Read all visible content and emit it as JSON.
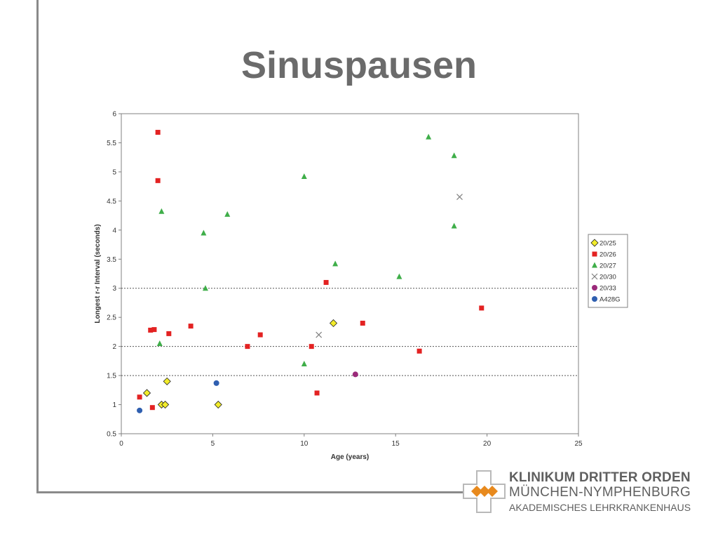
{
  "slide": {
    "title": "Sinuspausen"
  },
  "logo": {
    "line1": "KLINIKUM DRITTER ORDEN",
    "line2": "MÜNCHEN-NYMPHENBURG",
    "line3": "AKADEMISCHES LEHRKRANKENHAUS",
    "cross_color": "#b9b9b9",
    "diamond_color": "#e88a1e"
  },
  "chart_data": {
    "type": "scatter",
    "title": "",
    "xlabel": "Age (years)",
    "ylabel": "Longest r-r Interval (seconds)",
    "xlim": [
      0,
      25
    ],
    "ylim": [
      0.5,
      6
    ],
    "xticks": [
      0,
      5,
      10,
      15,
      20,
      25
    ],
    "yticks": [
      0.5,
      1,
      1.5,
      2,
      2.5,
      3,
      3.5,
      4,
      4.5,
      5,
      5.5,
      6
    ],
    "reference_lines_y": [
      1.5,
      2,
      3
    ],
    "grid": false,
    "legend_position": "right",
    "series": [
      {
        "name": "20/25",
        "marker": "diamond",
        "color": "#f2ec2b",
        "points": [
          [
            1.4,
            1.2
          ],
          [
            2.2,
            1.0
          ],
          [
            2.4,
            1.0
          ],
          [
            2.5,
            1.4
          ],
          [
            5.3,
            1.0
          ],
          [
            11.6,
            2.4
          ]
        ]
      },
      {
        "name": "20/26",
        "marker": "square",
        "color": "#e32222",
        "points": [
          [
            1.0,
            1.13
          ],
          [
            1.7,
            0.95
          ],
          [
            1.6,
            2.28
          ],
          [
            1.8,
            2.29
          ],
          [
            2.0,
            5.68
          ],
          [
            2.0,
            4.85
          ],
          [
            2.6,
            2.22
          ],
          [
            3.8,
            2.35
          ],
          [
            6.9,
            2.0
          ],
          [
            7.6,
            2.2
          ],
          [
            10.4,
            2.0
          ],
          [
            10.7,
            1.2
          ],
          [
            11.2,
            3.1
          ],
          [
            13.2,
            2.4
          ],
          [
            16.3,
            1.92
          ],
          [
            19.7,
            2.66
          ]
        ]
      },
      {
        "name": "20/27",
        "marker": "triangle",
        "color": "#3fae49",
        "points": [
          [
            2.1,
            2.05
          ],
          [
            2.2,
            4.32
          ],
          [
            4.5,
            3.95
          ],
          [
            4.6,
            3.0
          ],
          [
            5.8,
            4.27
          ],
          [
            10.0,
            4.92
          ],
          [
            10.0,
            1.7
          ],
          [
            11.7,
            3.42
          ],
          [
            15.2,
            3.2
          ],
          [
            16.8,
            5.6
          ],
          [
            18.2,
            5.28
          ],
          [
            18.2,
            4.07
          ]
        ]
      },
      {
        "name": "20/30",
        "marker": "x",
        "color": "#808080",
        "points": [
          [
            10.8,
            2.2
          ],
          [
            18.5,
            4.57
          ]
        ]
      },
      {
        "name": "20/33",
        "marker": "circle",
        "color": "#9b2a7a",
        "points": [
          [
            12.8,
            1.52
          ]
        ]
      },
      {
        "name": "A428G",
        "marker": "circle",
        "color": "#2f5fb0",
        "points": [
          [
            1.0,
            0.9
          ],
          [
            5.2,
            1.37
          ]
        ]
      }
    ]
  }
}
